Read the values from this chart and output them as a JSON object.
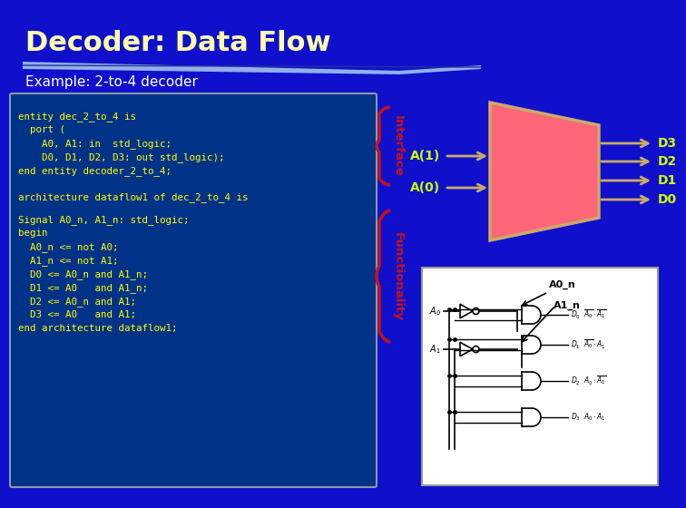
{
  "title": "Decoder: Data Flow",
  "subtitle": "Example: 2-to-4 decoder",
  "bg_color": "#1010CC",
  "title_color": "#FFFFAA",
  "subtitle_color": "#FFFFFF",
  "code_bg_color": "#003388",
  "code_text_color": "#FFFF00",
  "code_border_color": "#8899AA",
  "arrow_color": "#CCAA66",
  "label_color": "#CCFF00",
  "brace_color": "#CC1111",
  "decoder_fill": "#FF6677",
  "decoder_border": "#CCAA66",
  "interface_label": "Interface",
  "functionality_label": "Functionality",
  "swoosh_color": "#AACCEE",
  "code_lines_top": [
    "entity dec_2_to_4 is",
    "  port (",
    "    A0, A1: in  std_logic;",
    "    D0, D1, D2, D3: out std_logic);",
    "end entity decoder_2_to_4;"
  ],
  "code_lines_mid": [
    "architecture dataflow1 of dec_2_to_4 is"
  ],
  "code_lines_bot": [
    "Signal A0_n, A1_n: std_logic;",
    "begin",
    "  A0_n <= not A0;",
    "  A1_n <= not A1;",
    "  D0 <= A0_n and A1_n;",
    "  D1 <= A0   and A1_n;",
    "  D2 <= A0_n and A1;",
    "  D3 <= A0   and A1;",
    "end architecture dataflow1;"
  ],
  "inputs": [
    "A(1)",
    "A(0)"
  ],
  "outputs": [
    "D3",
    "D2",
    "D1",
    "D0"
  ],
  "anno_labels": [
    "A0_n",
    "A1_n"
  ]
}
